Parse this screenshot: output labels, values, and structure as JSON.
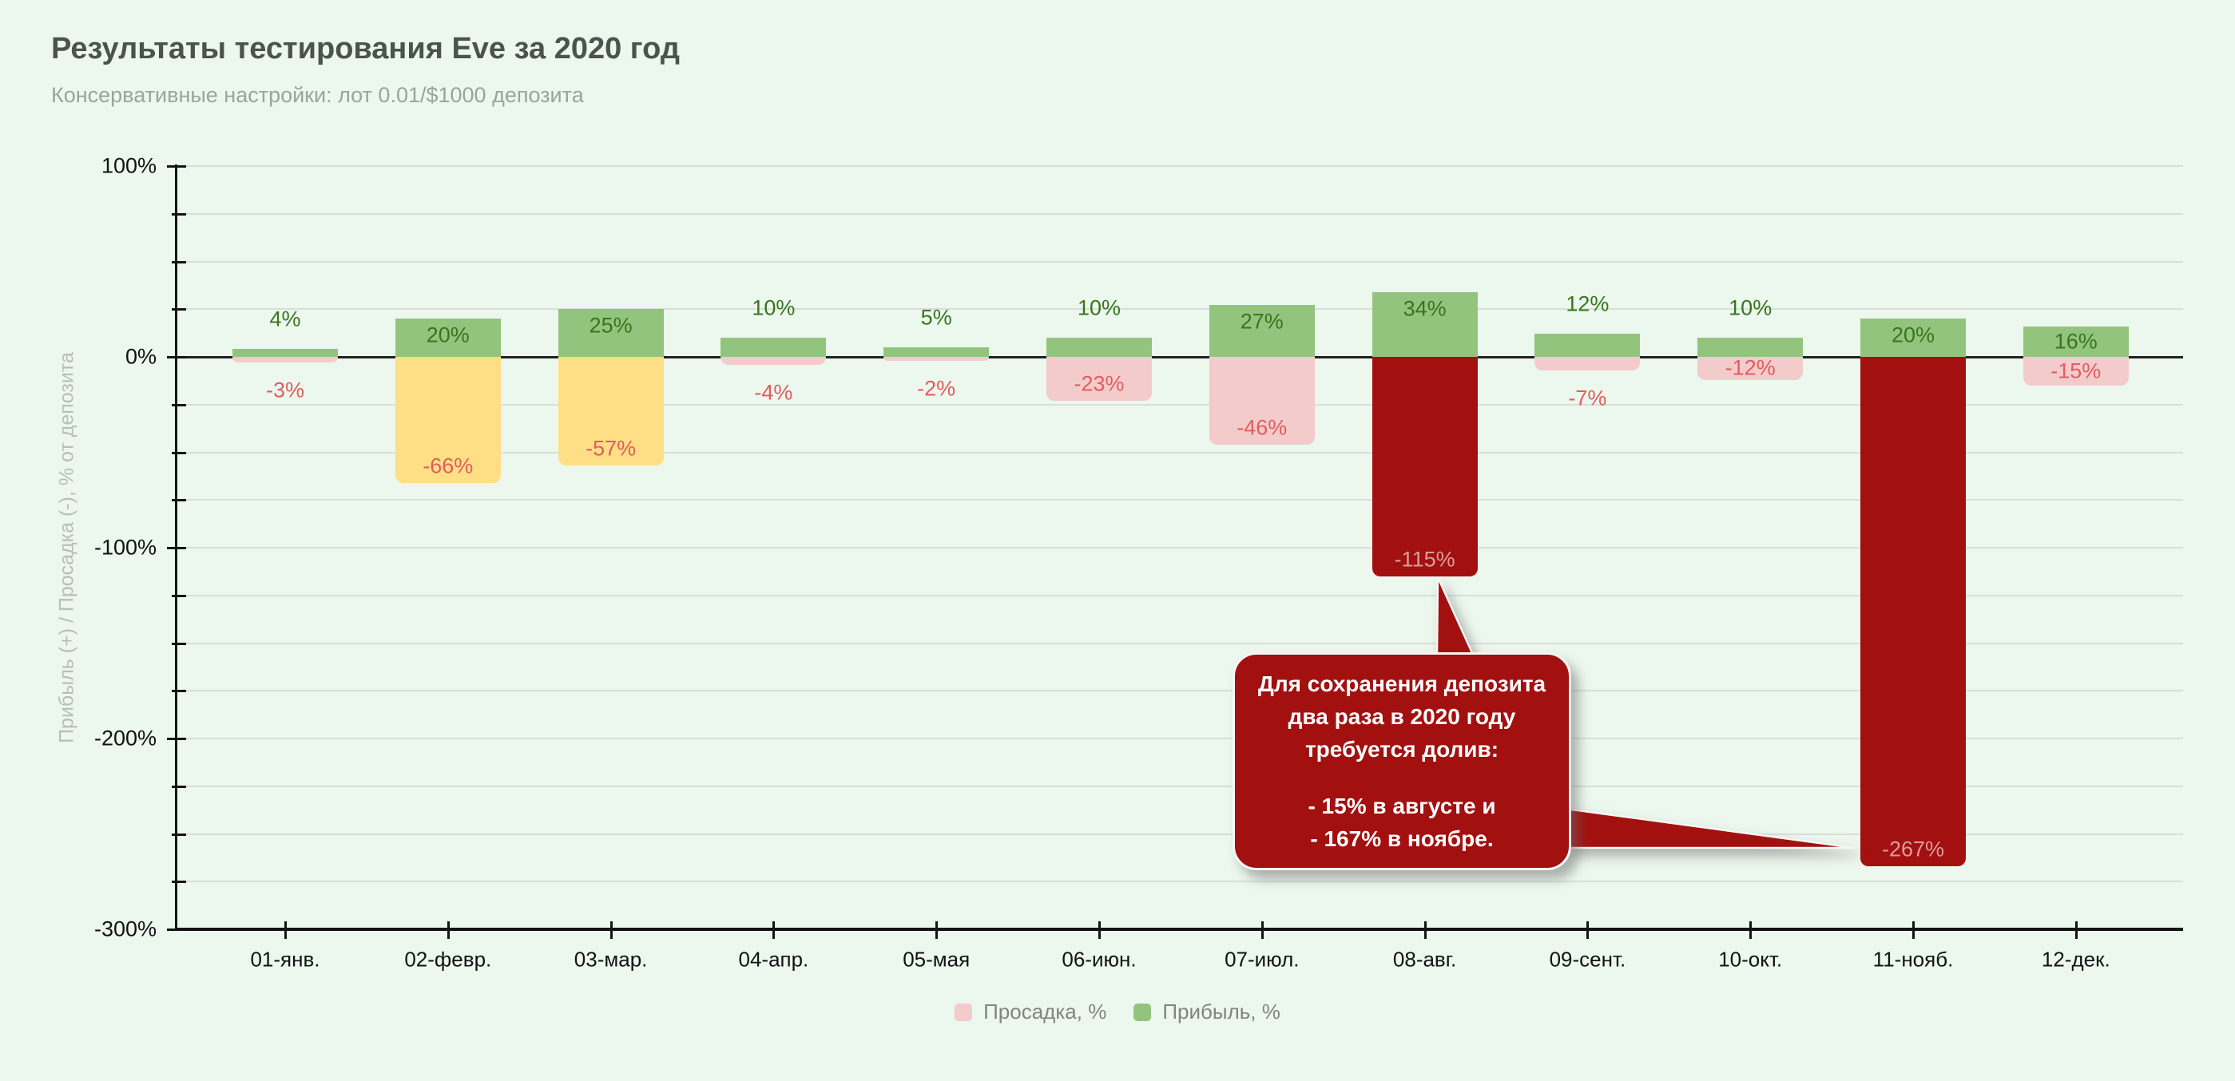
{
  "header": {
    "title": "Результаты тестирования Eve за 2020 год",
    "subtitle": "Консервативные настройки: лот 0.01/$1000 депозита"
  },
  "chart_data": {
    "type": "bar",
    "title": "Результаты тестирования Eve за 2020 год",
    "subtitle": "Консервативные настройки: лот 0.01/$1000 депозита",
    "xlabel": "",
    "ylabel": "Прибыль (+) / Просадка (-), % от депозита",
    "ylim": [
      -300,
      100
    ],
    "y_major_step": 100,
    "y_minor_step": 25,
    "y_major_tick_labels": [
      "100%",
      "0%",
      "-100%",
      "-200%",
      "-300%"
    ],
    "grid": "on",
    "legend_position": "bottom",
    "categories": [
      "01-янв.",
      "02-февр.",
      "03-мар.",
      "04-апр.",
      "05-мая",
      "06-июн.",
      "07-июл.",
      "08-авг.",
      "09-сент.",
      "10-окт.",
      "11-нояб.",
      "12-дек."
    ],
    "series": [
      {
        "name": "Прибыль, %",
        "values": [
          4,
          20,
          25,
          10,
          5,
          10,
          27,
          34,
          12,
          10,
          20,
          16
        ]
      },
      {
        "name": "Просадка, %",
        "values": [
          -3,
          -66,
          -57,
          -4,
          -2,
          -23,
          -46,
          -115,
          -7,
          -12,
          -267,
          -15
        ]
      }
    ],
    "drawdown_bar_styles": [
      "pink",
      "yellow",
      "yellow",
      "pink",
      "pink",
      "pink",
      "pink",
      "darkred",
      "pink",
      "pink",
      "darkred",
      "pink"
    ],
    "colors": {
      "profit_bar": "#93c47d",
      "drawdown_bar_pink": "#f4cbcb",
      "drawdown_bar_yellow": "#ffdf85",
      "drawdown_bar_darkred": "#a31010",
      "profit_label": "#38761d",
      "drawdown_label": "#e05e5e",
      "drawdown_label_on_dark": "#dd9c9c",
      "background": "#ecf7ed"
    },
    "annotation": {
      "para1": "Для сохранения депозита два раза в 2020 году требуется долив:",
      "para2_line1": "- 15% в августе и",
      "para2_line2": "- 167% в ноябре.",
      "points_to": [
        "08-авг.",
        "11-нояб."
      ]
    }
  },
  "legend": {
    "items": [
      {
        "label": "Просадка, %",
        "color": "#f4cbcb"
      },
      {
        "label": "Прибыль, %",
        "color": "#93c47d"
      }
    ]
  }
}
